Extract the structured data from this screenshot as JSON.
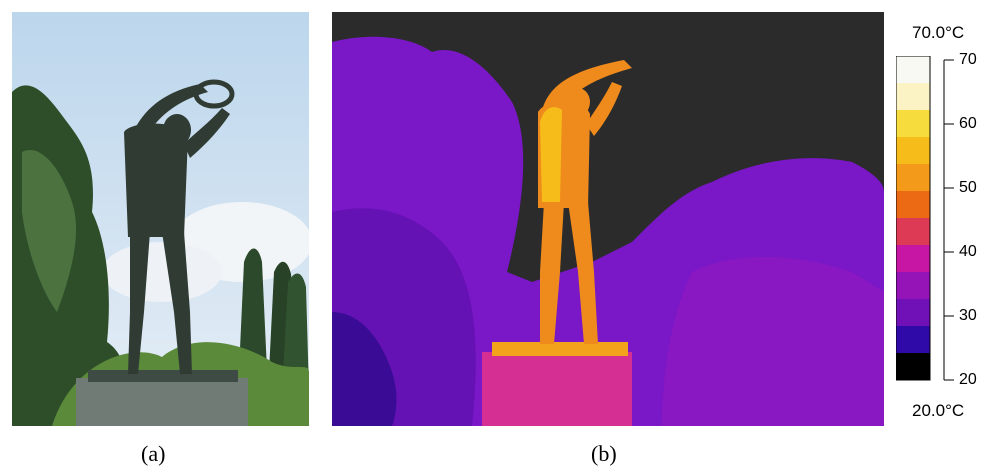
{
  "captions": {
    "a": "(a)",
    "b": "(b)"
  },
  "colorbar": {
    "max_label": "70.0°C",
    "min_label": "20.0°C",
    "ticks": [
      "70",
      "60",
      "50",
      "40",
      "30",
      "20"
    ],
    "colors": [
      "#f9f9f4",
      "#fbf3c4",
      "#f7dc3e",
      "#f6bd1a",
      "#f39a1a",
      "#ec6a14",
      "#dd3a55",
      "#c616a3",
      "#9414b8",
      "#7011b8",
      "#2f0aa8",
      "#000000"
    ]
  },
  "photo_colors": {
    "sky": "#cfe0f0",
    "foliage": "#2d4a28",
    "statue": "#2f3b33",
    "pedestal": "#6f7b74",
    "thermal_bg": "#2b2b2b",
    "thermal_trees": "#7a17c7",
    "thermal_statue": "#ef8a1c",
    "thermal_pedestal": "#d62f93"
  }
}
